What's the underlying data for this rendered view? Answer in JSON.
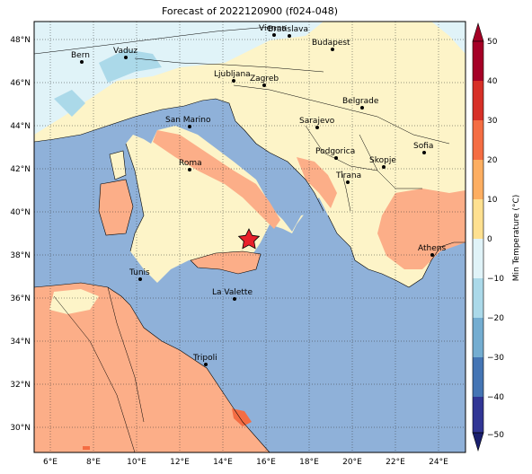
{
  "title": "Forecast of 2022120900 (f024-048)",
  "map": {
    "lon_range": [
      5,
      25
    ],
    "lat_range": [
      29,
      49
    ],
    "x_ticks": [
      "6°E",
      "8°E",
      "10°E",
      "12°E",
      "14°E",
      "16°E",
      "18°E",
      "20°E",
      "22°E",
      "24°E"
    ],
    "y_ticks": [
      "30°N",
      "32°N",
      "34°N",
      "36°N",
      "38°N",
      "40°N",
      "42°N",
      "44°N",
      "46°N",
      "48°N"
    ],
    "gridlines": true,
    "cities": [
      "Bern",
      "Vaduz",
      "Vienna",
      "Bratislava",
      "Budapest",
      "Ljubljana",
      "Zagreb",
      "San Marino",
      "Belgrade",
      "Sarajevo",
      "Sofia",
      "Podgorica",
      "Skopje",
      "Tirana",
      "Roma",
      "Athens",
      "Tunis",
      "La Valette",
      "Tripoli"
    ],
    "marker": "star"
  },
  "colorbar": {
    "label": "Min Temperature (°C)",
    "ticks": [
      "50",
      "40",
      "30",
      "20",
      "10",
      "0",
      "−10",
      "−20",
      "−30",
      "−40",
      "−50"
    ],
    "colors": [
      "#a50026",
      "#d73027",
      "#f46d43",
      "#fdae61",
      "#fee090",
      "#ffffbf",
      "#e0f3f8",
      "#abd9e9",
      "#74add1",
      "#4575b4",
      "#313695"
    ]
  }
}
